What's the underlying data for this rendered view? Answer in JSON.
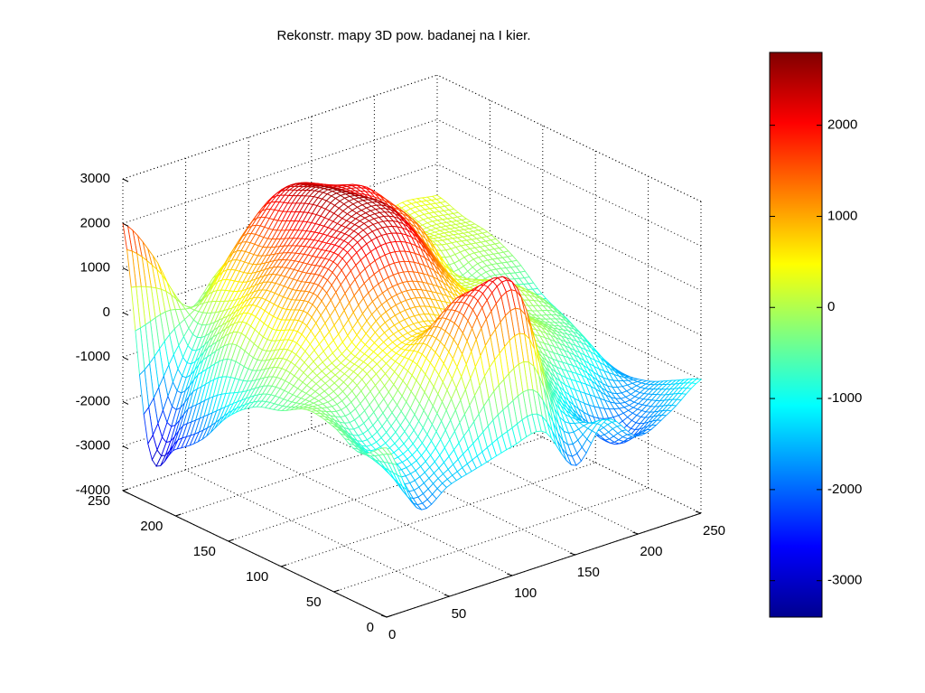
{
  "chart_data": {
    "type": "surface",
    "title": "Rekonstr. mapy 3D  pow. badanej na I kier.",
    "xlabel": "",
    "ylabel": "",
    "zlabel": "",
    "xlim": [
      0,
      250
    ],
    "ylim": [
      0,
      250
    ],
    "zlim": [
      -4000,
      3000
    ],
    "x_ticks": [
      "0",
      "50",
      "100",
      "150",
      "200",
      "250"
    ],
    "y_ticks": [
      "0",
      "50",
      "100",
      "150",
      "200",
      "250"
    ],
    "z_ticks": [
      "3000",
      "2000",
      "1000",
      "0",
      "-1000",
      "-2000",
      "-3000",
      "-4000"
    ],
    "grid": true,
    "colormap": "jet",
    "colorbar": {
      "position": "right",
      "clim": [
        -3400,
        2800
      ],
      "ticks": [
        "2000",
        "1000",
        "0",
        "-1000",
        "-2000",
        "-3000"
      ]
    },
    "surface_grid_step": 25,
    "x": [
      0,
      25,
      50,
      75,
      100,
      125,
      150,
      175,
      200,
      225,
      250
    ],
    "y": [
      0,
      25,
      50,
      75,
      100,
      125,
      150,
      175,
      200,
      225,
      250
    ],
    "z": [
      [
        -200,
        -1800,
        -1500,
        -1300,
        -1100,
        -1000,
        -2000,
        -1200,
        -1800,
        -1500,
        -1000
      ],
      [
        -600,
        -1200,
        -1000,
        200,
        1600,
        1900,
        -500,
        -1500,
        -2200,
        -1800,
        -1300
      ],
      [
        -300,
        -900,
        -400,
        800,
        1700,
        1400,
        300,
        -600,
        -1100,
        -1700,
        -1600
      ],
      [
        -200,
        -300,
        200,
        600,
        700,
        400,
        200,
        100,
        -400,
        -900,
        -1700
      ],
      [
        -500,
        0,
        400,
        1100,
        1300,
        1000,
        500,
        200,
        -200,
        -500,
        -1500
      ],
      [
        -700,
        200,
        1200,
        2000,
        2300,
        2000,
        1000,
        200,
        200,
        -300,
        -1100
      ],
      [
        -1200,
        -100,
        1100,
        2000,
        2500,
        2400,
        1500,
        300,
        0,
        -500,
        -800
      ],
      [
        -2000,
        0,
        1000,
        1800,
        2600,
        2300,
        1700,
        1100,
        -300,
        -200,
        -300
      ],
      [
        -2500,
        -600,
        500,
        1500,
        2400,
        2200,
        2000,
        1200,
        300,
        100,
        0
      ],
      [
        -2800,
        -1200,
        200,
        1300,
        2000,
        2000,
        1400,
        800,
        200,
        200,
        100
      ],
      [
        2000,
        1000,
        -400,
        200,
        800,
        1200,
        900,
        600,
        300,
        400,
        300
      ]
    ]
  }
}
